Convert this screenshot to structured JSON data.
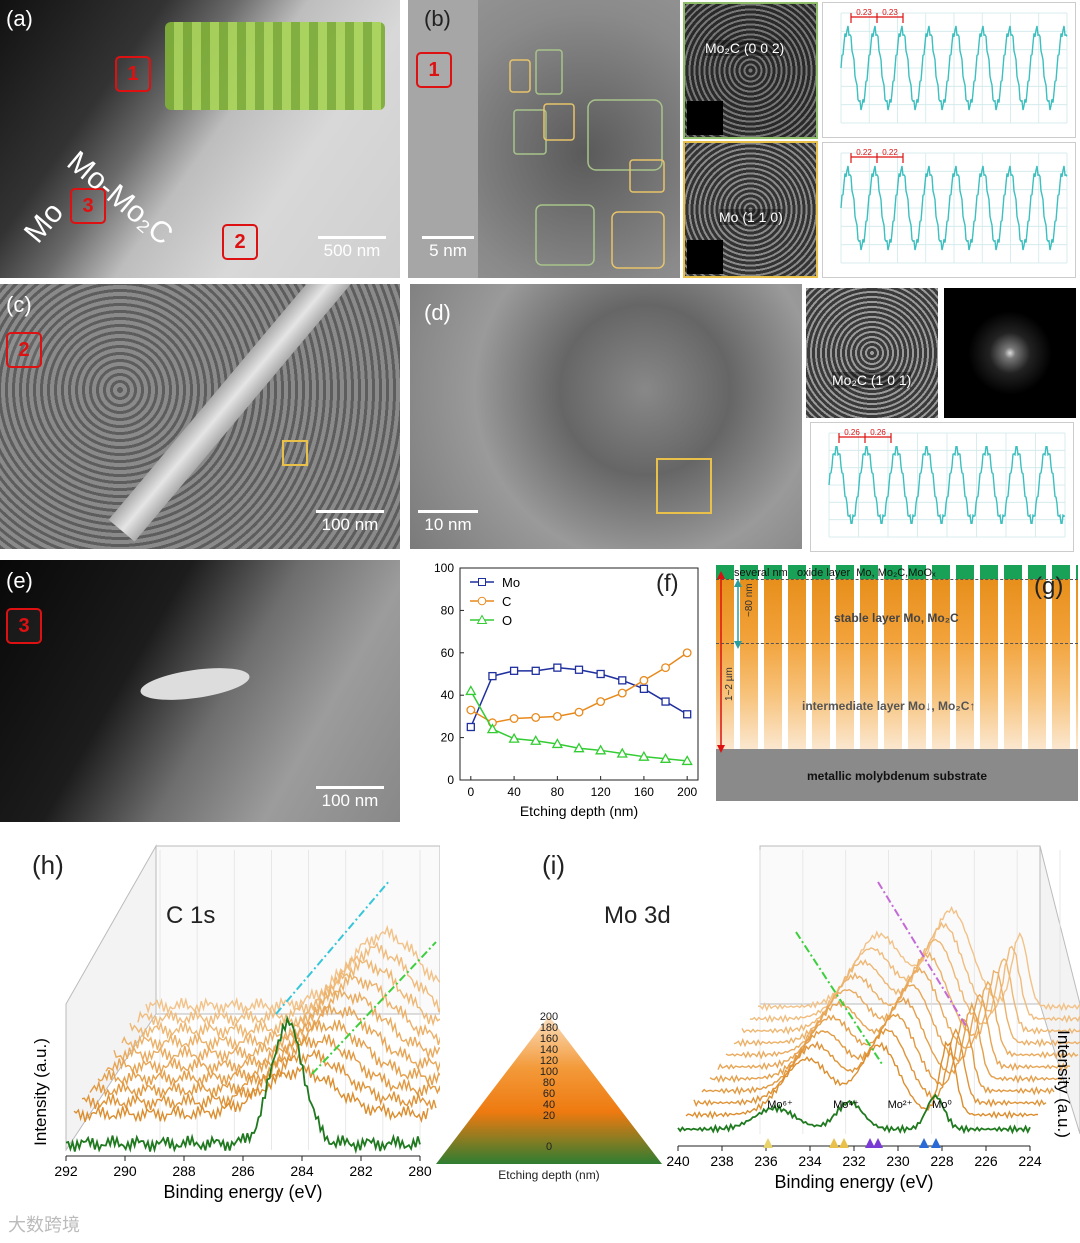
{
  "panels": {
    "a": {
      "label": "(a)",
      "boxes": [
        "1",
        "3",
        "2"
      ],
      "text_mo2c": "Mo-Mo₂C",
      "text_mo": "Mo",
      "scale": "500 nm"
    },
    "b": {
      "label": "(b)",
      "box": "1",
      "scale": "5 nm",
      "inset1": "Mo₂C (0 0 2)",
      "inset2": "Mo (1 1 0)",
      "profile1_marks": [
        "0.23",
        "0.23"
      ],
      "profile2_marks": [
        "0.22",
        "0.22"
      ]
    },
    "c": {
      "label": "(c)",
      "box": "2",
      "scale": "100 nm"
    },
    "d": {
      "label": "(d)",
      "scale": "10 nm",
      "inset": "Mo₂C (1 0 1)",
      "profile_marks": [
        "0.26",
        "0.26"
      ]
    },
    "e": {
      "label": "(e)",
      "box": "3",
      "scale": "100 nm"
    },
    "f": {
      "label": "(f)"
    },
    "g": {
      "label": "(g)",
      "layers": {
        "oxide": "several nm   oxide layer  Mo, Mo₂C,MoOₓ",
        "stable": "stable layer  Mo, Mo₂C",
        "intermediate": "intermediate layer  Mo↓, Mo₂C↑",
        "substrate": "metallic molybdenum substrate"
      },
      "dim_small": "~80 nm",
      "dim_large": "1~2 µm"
    },
    "h": {
      "label": "(h)",
      "title": "C 1s"
    },
    "i": {
      "label": "(i)",
      "title": "Mo 3d",
      "species": [
        "Mo⁶⁺",
        "Mo⁴⁺",
        "Mo²⁺",
        "Mo⁰"
      ]
    },
    "depth_legend": {
      "ticks": [
        "200",
        "180",
        "160",
        "140",
        "120",
        "100",
        "80",
        "60",
        "40",
        "20",
        "0"
      ],
      "caption": "Etching depth (nm)"
    }
  },
  "watermark": "大数跨境",
  "colors": {
    "red": "#d11",
    "teal": "#3dbfbf",
    "orange": "#e8891c",
    "green": "#1f7a1f"
  },
  "chart_data": [
    {
      "type": "line",
      "title": "",
      "xlabel": "Etching depth (nm)",
      "ylabel": "",
      "xlim": [
        -10,
        210
      ],
      "ylim": [
        0,
        100
      ],
      "xticks": [
        0,
        40,
        80,
        120,
        160,
        200
      ],
      "yticks": [
        0,
        20,
        40,
        60,
        80,
        100
      ],
      "legend": "top-left",
      "x": [
        0,
        20,
        40,
        60,
        80,
        100,
        120,
        140,
        160,
        180,
        200
      ],
      "series": [
        {
          "name": "Mo",
          "color": "#1f2f9e",
          "marker": "square",
          "values": [
            25,
            49,
            51.5,
            51.5,
            53,
            52,
            50,
            47,
            43,
            37,
            31
          ]
        },
        {
          "name": "C",
          "color": "#e8891c",
          "marker": "circle",
          "values": [
            33,
            27,
            29,
            29.5,
            30,
            32,
            37,
            41,
            47,
            53,
            60
          ]
        },
        {
          "name": "O",
          "color": "#33cc33",
          "marker": "triangle",
          "values": [
            42,
            24,
            19.5,
            18.5,
            17,
            15,
            14,
            12.5,
            11,
            10,
            9
          ]
        }
      ]
    },
    {
      "type": "line",
      "title": "C 1s",
      "xlabel": "Binding energy (eV)",
      "ylabel": "Intensity (a.u.)",
      "xlim": [
        292,
        280
      ],
      "xticks": [
        292,
        290,
        288,
        286,
        284,
        282,
        280
      ],
      "depths_nm": [
        0,
        20,
        40,
        60,
        80,
        100,
        120,
        140,
        160,
        180,
        200
      ],
      "peak_eV": 284.5
    },
    {
      "type": "line",
      "title": "Mo 3d",
      "xlabel": "Binding energy (eV)",
      "ylabel": "Intensity (a.u.)",
      "xlim": [
        240,
        224
      ],
      "xticks": [
        240,
        238,
        236,
        234,
        232,
        230,
        228,
        226,
        224
      ],
      "depths_nm": [
        0,
        20,
        40,
        60,
        80,
        100,
        120,
        140,
        160,
        180,
        200
      ],
      "peaks_eV": [
        231.2,
        228.0
      ]
    }
  ]
}
